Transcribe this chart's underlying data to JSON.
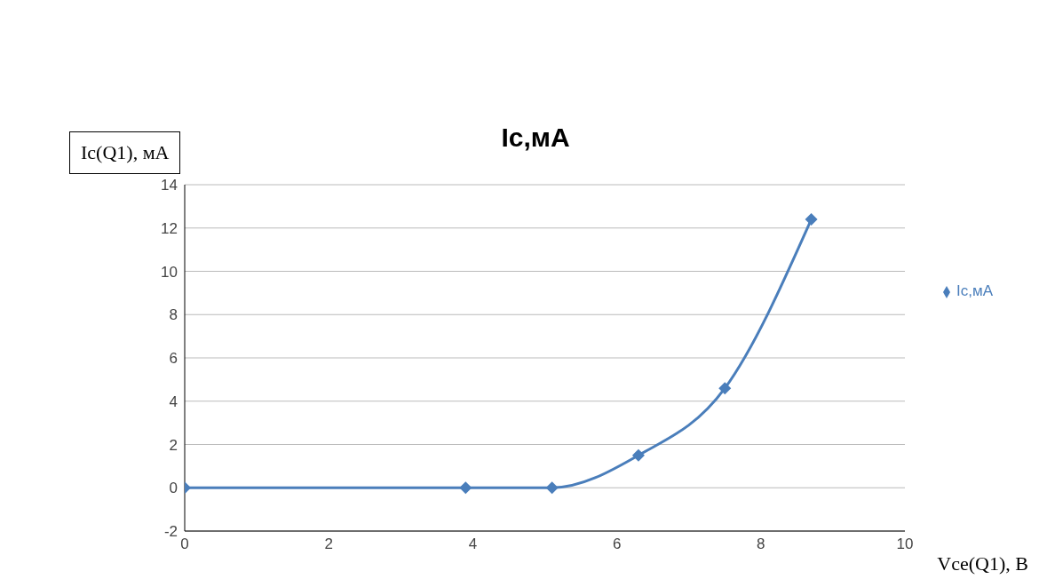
{
  "chart_data": {
    "type": "line",
    "title": "Ic,мА",
    "xlabel": "Vce(Q1), В",
    "ylabel": "Ic(Q1), мА",
    "x": [
      0,
      3.9,
      5.1,
      6.3,
      7.5,
      8.7
    ],
    "series": [
      {
        "name": "Ic,мА",
        "color": "#4a7ebb",
        "values": [
          0,
          0,
          0,
          1.5,
          4.6,
          12.4
        ]
      }
    ],
    "xlim": [
      0,
      10
    ],
    "xticks": [
      0,
      2,
      4,
      6,
      8,
      10
    ],
    "ylim": [
      -2,
      14
    ],
    "yticks": [
      -2,
      0,
      2,
      4,
      6,
      8,
      10,
      12,
      14
    ],
    "grid": "y",
    "legend": "right",
    "marker": "diamond",
    "line_style": "solid"
  }
}
